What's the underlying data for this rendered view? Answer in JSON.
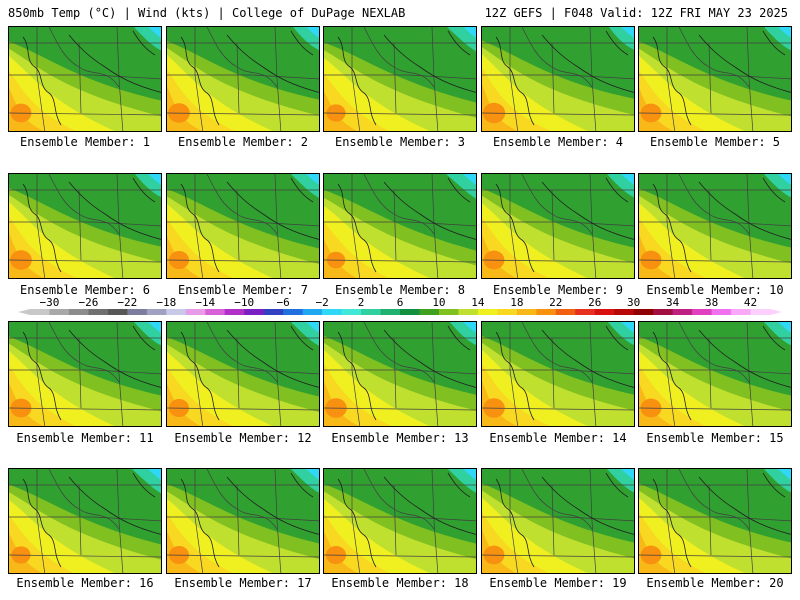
{
  "header": {
    "left": "850mb Temp (°C) | Wind (kts) | College of DuPage NEXLAB",
    "right": "12Z GEFS | F048 Valid: 12Z FRI MAY 23 2025"
  },
  "members": [
    {
      "label": "Ensemble Member: 1",
      "warmth": 0.55
    },
    {
      "label": "Ensemble Member: 2",
      "warmth": 0.6
    },
    {
      "label": "Ensemble Member: 3",
      "warmth": 0.45
    },
    {
      "label": "Ensemble Member: 4",
      "warmth": 0.65
    },
    {
      "label": "Ensemble Member: 5",
      "warmth": 0.55
    },
    {
      "label": "Ensemble Member: 6",
      "warmth": 0.6
    },
    {
      "label": "Ensemble Member: 7",
      "warmth": 0.5
    },
    {
      "label": "Ensemble Member: 8",
      "warmth": 0.4
    },
    {
      "label": "Ensemble Member: 9",
      "warmth": 0.55
    },
    {
      "label": "Ensemble Member: 10",
      "warmth": 0.55
    },
    {
      "label": "Ensemble Member: 11",
      "warmth": 0.55
    },
    {
      "label": "Ensemble Member: 12",
      "warmth": 0.5
    },
    {
      "label": "Ensemble Member: 13",
      "warmth": 0.6
    },
    {
      "label": "Ensemble Member: 14",
      "warmth": 0.6
    },
    {
      "label": "Ensemble Member: 15",
      "warmth": 0.55
    },
    {
      "label": "Ensemble Member: 16",
      "warmth": 0.45
    },
    {
      "label": "Ensemble Member: 17",
      "warmth": 0.5
    },
    {
      "label": "Ensemble Member: 18",
      "warmth": 0.5
    },
    {
      "label": "Ensemble Member: 19",
      "warmth": 0.55
    },
    {
      "label": "Ensemble Member: 20",
      "warmth": 0.55
    }
  ],
  "colorbar": {
    "ticks": [
      "−30",
      "−26",
      "−22",
      "−18",
      "−14",
      "−10",
      "−6",
      "−2",
      "2",
      "6",
      "10",
      "14",
      "18",
      "22",
      "26",
      "30",
      "34",
      "38",
      "42"
    ],
    "colors": [
      "#c8c8c8",
      "#a8a8a8",
      "#8c8c8c",
      "#707070",
      "#585858",
      "#7c7c9c",
      "#a0a0c0",
      "#c8c8e8",
      "#e89ce8",
      "#d860d8",
      "#b030c8",
      "#7a20c0",
      "#3040c0",
      "#2070e0",
      "#20a8f0",
      "#30d8f8",
      "#40e8d8",
      "#30d0a0",
      "#20b070",
      "#109040",
      "#40a020",
      "#80c020",
      "#c0e030",
      "#f0f020",
      "#f8d820",
      "#f8b818",
      "#f89010",
      "#f06010",
      "#e83020",
      "#d81010",
      "#b80808",
      "#900000",
      "#a01040",
      "#c02080",
      "#e040c0",
      "#f070f0",
      "#f8a8f8",
      "#fcd0fc"
    ]
  }
}
